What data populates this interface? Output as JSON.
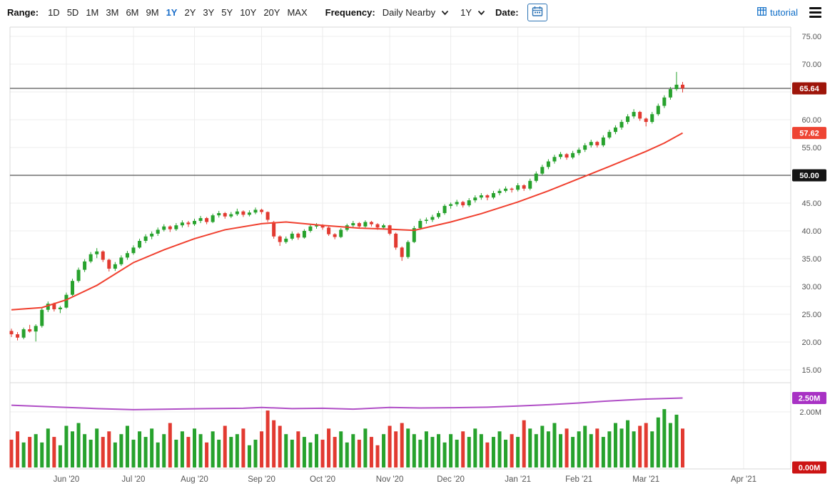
{
  "toolbar": {
    "range_label": "Range:",
    "range_options": [
      "1D",
      "5D",
      "1M",
      "3M",
      "6M",
      "9M",
      "1Y",
      "2Y",
      "3Y",
      "5Y",
      "10Y",
      "20Y",
      "MAX"
    ],
    "range_active": "1Y",
    "frequency_label": "Frequency:",
    "frequency_value": "Daily Nearby",
    "period_value": "1Y",
    "date_label": "Date:",
    "tutorial_label": "tutorial"
  },
  "colors": {
    "up": "#27a22d",
    "down": "#e23a31",
    "ma_line": "#f0402f",
    "oi_line": "#b04ec6",
    "grid": "#ececec",
    "frame": "#d8d8d8",
    "hline": "#2a2a2a",
    "axis_text": "#555555",
    "accent_blue": "#1b6ec9"
  },
  "chart_data": {
    "type": "candlestick_with_volume",
    "last_close": 65.64,
    "ma_last": 57.62,
    "open_interest_last_label": "2.50M",
    "x_ticks": [
      {
        "index": 9,
        "label": "Jun '20"
      },
      {
        "index": 20,
        "label": "Jul '20"
      },
      {
        "index": 30,
        "label": "Aug '20"
      },
      {
        "index": 41,
        "label": "Sep '20"
      },
      {
        "index": 51,
        "label": "Oct '20"
      },
      {
        "index": 62,
        "label": "Nov '20"
      },
      {
        "index": 72,
        "label": "Dec '20"
      },
      {
        "index": 83,
        "label": "Jan '21"
      },
      {
        "index": 93,
        "label": "Feb '21"
      },
      {
        "index": 104,
        "label": "Mar '21"
      },
      {
        "index": 120,
        "label": "Apr '21"
      }
    ],
    "price_axis": {
      "min": 15,
      "max": 75,
      "ticks": [
        {
          "v": 75,
          "label": "75.00"
        },
        {
          "v": 70,
          "label": "70.00"
        },
        {
          "v": 65,
          "label": "65.00"
        },
        {
          "v": 60,
          "label": "60.00"
        },
        {
          "v": 55,
          "label": "55.00"
        },
        {
          "v": 50,
          "label": "50.00"
        },
        {
          "v": 45,
          "label": "45.00"
        },
        {
          "v": 40,
          "label": "40.00"
        },
        {
          "v": 35,
          "label": "35.00"
        },
        {
          "v": 30,
          "label": "30.00"
        },
        {
          "v": 25,
          "label": "25.00"
        },
        {
          "v": 20,
          "label": "20.00"
        },
        {
          "v": 15,
          "label": "15.00"
        }
      ]
    },
    "volume_axis": {
      "min": 0,
      "max": 2.6,
      "ticks": [
        {
          "v": 2,
          "label": "2.00M"
        },
        {
          "v": 0,
          "label": "0.00M"
        }
      ]
    },
    "hlines": [
      {
        "v": 65.64
      },
      {
        "v": 50
      }
    ],
    "price_badges": [
      {
        "v": 65.64,
        "label": "65.64",
        "bg": "#9e150a"
      },
      {
        "v": 57.62,
        "label": "57.62",
        "bg": "#ee4433"
      },
      {
        "v": 50,
        "label": "50.00",
        "bg": "#141414"
      }
    ],
    "volume_badges": [
      {
        "v": 2.5,
        "label": "2.50M",
        "bg": "#a832c4"
      },
      {
        "v": 0,
        "label": "0.00M",
        "bg": "#cc1414"
      }
    ],
    "candles": [
      [
        22.0,
        22.4,
        20.9,
        21.4
      ],
      [
        21.4,
        21.8,
        20.3,
        20.8
      ],
      [
        20.8,
        22.6,
        20.5,
        22.3
      ],
      [
        22.3,
        23.1,
        21.7,
        21.9
      ],
      [
        21.9,
        23.2,
        20.1,
        22.9
      ],
      [
        22.9,
        26.2,
        22.6,
        25.8
      ],
      [
        25.8,
        27.3,
        25.4,
        26.9
      ],
      [
        26.9,
        27.1,
        25.5,
        25.9
      ],
      [
        25.9,
        26.5,
        25.2,
        26.2
      ],
      [
        26.2,
        28.9,
        26.0,
        28.5
      ],
      [
        28.5,
        31.4,
        28.3,
        31.0
      ],
      [
        31.0,
        33.4,
        30.7,
        33.0
      ],
      [
        33.0,
        34.9,
        32.6,
        34.5
      ],
      [
        34.5,
        36.2,
        34.2,
        35.8
      ],
      [
        35.8,
        36.9,
        35.1,
        36.3
      ],
      [
        36.3,
        36.5,
        34.4,
        34.8
      ],
      [
        34.8,
        35.0,
        32.7,
        33.2
      ],
      [
        33.2,
        34.4,
        32.8,
        34.0
      ],
      [
        34.0,
        35.6,
        33.7,
        35.2
      ],
      [
        35.2,
        36.4,
        34.8,
        36.0
      ],
      [
        36.0,
        37.4,
        35.7,
        37.0
      ],
      [
        37.0,
        38.6,
        36.8,
        38.2
      ],
      [
        38.2,
        39.4,
        37.8,
        39.0
      ],
      [
        39.0,
        39.9,
        38.5,
        39.5
      ],
      [
        39.5,
        40.6,
        39.1,
        40.2
      ],
      [
        40.2,
        41.2,
        39.9,
        40.8
      ],
      [
        40.8,
        41.0,
        39.8,
        40.3
      ],
      [
        40.3,
        41.4,
        40.0,
        41.0
      ],
      [
        41.0,
        41.9,
        40.6,
        41.5
      ],
      [
        41.5,
        41.8,
        40.7,
        41.2
      ],
      [
        41.2,
        42.2,
        40.9,
        41.8
      ],
      [
        41.8,
        42.7,
        41.4,
        42.3
      ],
      [
        42.3,
        42.5,
        41.2,
        41.6
      ],
      [
        41.6,
        43.1,
        41.4,
        42.8
      ],
      [
        42.8,
        43.6,
        42.4,
        43.2
      ],
      [
        43.2,
        43.4,
        42.2,
        42.6
      ],
      [
        42.6,
        43.4,
        42.3,
        43.0
      ],
      [
        43.0,
        44.0,
        42.7,
        43.5
      ],
      [
        43.5,
        43.7,
        42.5,
        42.9
      ],
      [
        42.9,
        43.7,
        42.6,
        43.3
      ],
      [
        43.3,
        44.2,
        43.0,
        43.8
      ],
      [
        43.8,
        44.0,
        43.0,
        43.4
      ],
      [
        43.4,
        43.5,
        41.6,
        42.0
      ],
      [
        41.6,
        41.8,
        38.6,
        39.0
      ],
      [
        39.0,
        39.2,
        37.3,
        38.0
      ],
      [
        38.0,
        39.0,
        37.7,
        38.6
      ],
      [
        38.6,
        39.9,
        38.3,
        39.5
      ],
      [
        39.5,
        39.7,
        38.4,
        38.8
      ],
      [
        38.8,
        40.3,
        38.6,
        40.0
      ],
      [
        40.0,
        41.1,
        39.7,
        40.8
      ],
      [
        40.8,
        41.4,
        40.4,
        41.0
      ],
      [
        41.0,
        41.2,
        40.2,
        40.6
      ],
      [
        40.6,
        40.8,
        39.1,
        39.4
      ],
      [
        39.4,
        39.6,
        38.5,
        38.9
      ],
      [
        38.9,
        40.5,
        38.7,
        40.2
      ],
      [
        40.2,
        41.3,
        39.9,
        41.0
      ],
      [
        41.0,
        41.8,
        40.7,
        41.4
      ],
      [
        41.4,
        41.6,
        40.5,
        40.8
      ],
      [
        40.8,
        41.9,
        40.6,
        41.6
      ],
      [
        41.6,
        41.8,
        40.8,
        41.2
      ],
      [
        41.2,
        41.4,
        40.2,
        40.6
      ],
      [
        40.6,
        41.3,
        40.3,
        41.0
      ],
      [
        41.0,
        41.1,
        39.2,
        39.5
      ],
      [
        39.5,
        39.7,
        36.6,
        37.0
      ],
      [
        37.0,
        37.2,
        34.6,
        35.3
      ],
      [
        35.3,
        38.3,
        35.0,
        38.0
      ],
      [
        38.0,
        40.9,
        37.8,
        40.5
      ],
      [
        40.5,
        42.2,
        40.2,
        41.8
      ],
      [
        41.8,
        42.4,
        41.3,
        42.0
      ],
      [
        42.0,
        42.9,
        41.6,
        42.5
      ],
      [
        42.5,
        43.6,
        42.2,
        43.2
      ],
      [
        43.2,
        44.8,
        42.9,
        44.5
      ],
      [
        44.5,
        45.1,
        44.0,
        44.8
      ],
      [
        44.8,
        45.6,
        44.4,
        45.2
      ],
      [
        45.2,
        45.4,
        44.2,
        44.6
      ],
      [
        44.6,
        45.9,
        44.3,
        45.5
      ],
      [
        45.5,
        46.4,
        45.1,
        46.0
      ],
      [
        46.0,
        46.8,
        45.6,
        46.4
      ],
      [
        46.4,
        46.6,
        45.5,
        46.0
      ],
      [
        46.0,
        47.2,
        45.7,
        46.8
      ],
      [
        46.8,
        47.6,
        46.4,
        47.2
      ],
      [
        47.2,
        48.0,
        46.9,
        47.6
      ],
      [
        47.6,
        47.8,
        46.9,
        47.4
      ],
      [
        47.4,
        48.6,
        47.1,
        48.2
      ],
      [
        48.2,
        48.4,
        47.2,
        47.6
      ],
      [
        47.6,
        49.4,
        47.3,
        49.0
      ],
      [
        49.0,
        50.7,
        48.7,
        50.3
      ],
      [
        50.3,
        51.9,
        50.0,
        51.5
      ],
      [
        51.5,
        52.9,
        51.1,
        52.5
      ],
      [
        52.5,
        53.7,
        52.1,
        53.3
      ],
      [
        53.3,
        54.2,
        52.9,
        53.8
      ],
      [
        53.8,
        54.0,
        52.8,
        53.2
      ],
      [
        53.2,
        54.4,
        52.9,
        54.0
      ],
      [
        54.0,
        55.0,
        53.6,
        54.6
      ],
      [
        54.6,
        55.8,
        54.2,
        55.4
      ],
      [
        55.4,
        56.4,
        55.0,
        56.0
      ],
      [
        56.0,
        56.2,
        55.0,
        55.4
      ],
      [
        55.4,
        57.2,
        55.1,
        56.8
      ],
      [
        56.8,
        58.2,
        56.5,
        57.8
      ],
      [
        57.8,
        59.0,
        57.4,
        58.6
      ],
      [
        58.6,
        60.0,
        58.2,
        59.6
      ],
      [
        59.6,
        61.0,
        59.2,
        60.6
      ],
      [
        60.6,
        61.9,
        60.2,
        61.4
      ],
      [
        61.4,
        61.6,
        59.8,
        60.2
      ],
      [
        60.2,
        60.4,
        58.8,
        59.6
      ],
      [
        59.6,
        61.4,
        59.3,
        61.0
      ],
      [
        61.0,
        62.9,
        60.7,
        62.5
      ],
      [
        62.5,
        64.4,
        62.1,
        64.0
      ],
      [
        64.0,
        65.9,
        63.6,
        65.5
      ],
      [
        65.5,
        68.6,
        65.2,
        66.3
      ],
      [
        66.3,
        66.8,
        64.9,
        65.64
      ]
    ],
    "volumes": [
      1.0,
      1.3,
      0.9,
      1.1,
      1.2,
      0.9,
      1.4,
      1.1,
      0.8,
      1.5,
      1.3,
      1.6,
      1.2,
      1.0,
      1.4,
      1.1,
      1.3,
      0.9,
      1.2,
      1.5,
      1.0,
      1.3,
      1.1,
      1.4,
      0.9,
      1.2,
      1.6,
      1.0,
      1.3,
      1.1,
      1.4,
      1.2,
      0.9,
      1.3,
      1.0,
      1.5,
      1.1,
      1.2,
      1.4,
      0.8,
      1.0,
      1.3,
      2.05,
      1.7,
      1.5,
      1.2,
      1.0,
      1.3,
      1.1,
      0.9,
      1.2,
      1.0,
      1.4,
      1.1,
      1.3,
      0.9,
      1.2,
      1.0,
      1.4,
      1.1,
      0.8,
      1.2,
      1.5,
      1.3,
      1.6,
      1.4,
      1.2,
      1.0,
      1.3,
      1.1,
      1.2,
      0.9,
      1.2,
      1.0,
      1.3,
      1.1,
      1.4,
      1.2,
      0.9,
      1.1,
      1.3,
      1.0,
      1.2,
      1.1,
      1.7,
      1.4,
      1.2,
      1.5,
      1.3,
      1.6,
      1.2,
      1.4,
      1.1,
      1.3,
      1.5,
      1.2,
      1.4,
      1.1,
      1.3,
      1.6,
      1.4,
      1.7,
      1.3,
      1.5,
      1.6,
      1.3,
      1.8,
      2.1,
      1.6,
      1.9,
      1.4
    ],
    "ma_anchors": [
      [
        0,
        25.8
      ],
      [
        5,
        26.2
      ],
      [
        9,
        27.6
      ],
      [
        14,
        30.2
      ],
      [
        20,
        34.3
      ],
      [
        25,
        36.6
      ],
      [
        30,
        38.6
      ],
      [
        35,
        40.2
      ],
      [
        41,
        41.3
      ],
      [
        45,
        41.6
      ],
      [
        51,
        41.0
      ],
      [
        57,
        40.5
      ],
      [
        62,
        40.3
      ],
      [
        66,
        40.1
      ],
      [
        72,
        41.6
      ],
      [
        77,
        43.1
      ],
      [
        83,
        45.2
      ],
      [
        88,
        47.2
      ],
      [
        93,
        49.4
      ],
      [
        98,
        51.6
      ],
      [
        104,
        54.3
      ],
      [
        107,
        55.8
      ],
      [
        110,
        57.62
      ]
    ],
    "open_interest_anchors": [
      [
        0,
        2.24
      ],
      [
        8,
        2.17
      ],
      [
        14,
        2.12
      ],
      [
        20,
        2.08
      ],
      [
        26,
        2.1
      ],
      [
        32,
        2.12
      ],
      [
        38,
        2.13
      ],
      [
        41,
        2.16
      ],
      [
        46,
        2.12
      ],
      [
        51,
        2.13
      ],
      [
        56,
        2.1
      ],
      [
        62,
        2.16
      ],
      [
        67,
        2.14
      ],
      [
        72,
        2.15
      ],
      [
        78,
        2.17
      ],
      [
        83,
        2.21
      ],
      [
        88,
        2.26
      ],
      [
        93,
        2.32
      ],
      [
        97,
        2.38
      ],
      [
        101,
        2.43
      ],
      [
        104,
        2.46
      ],
      [
        107,
        2.48
      ],
      [
        110,
        2.5
      ]
    ]
  }
}
